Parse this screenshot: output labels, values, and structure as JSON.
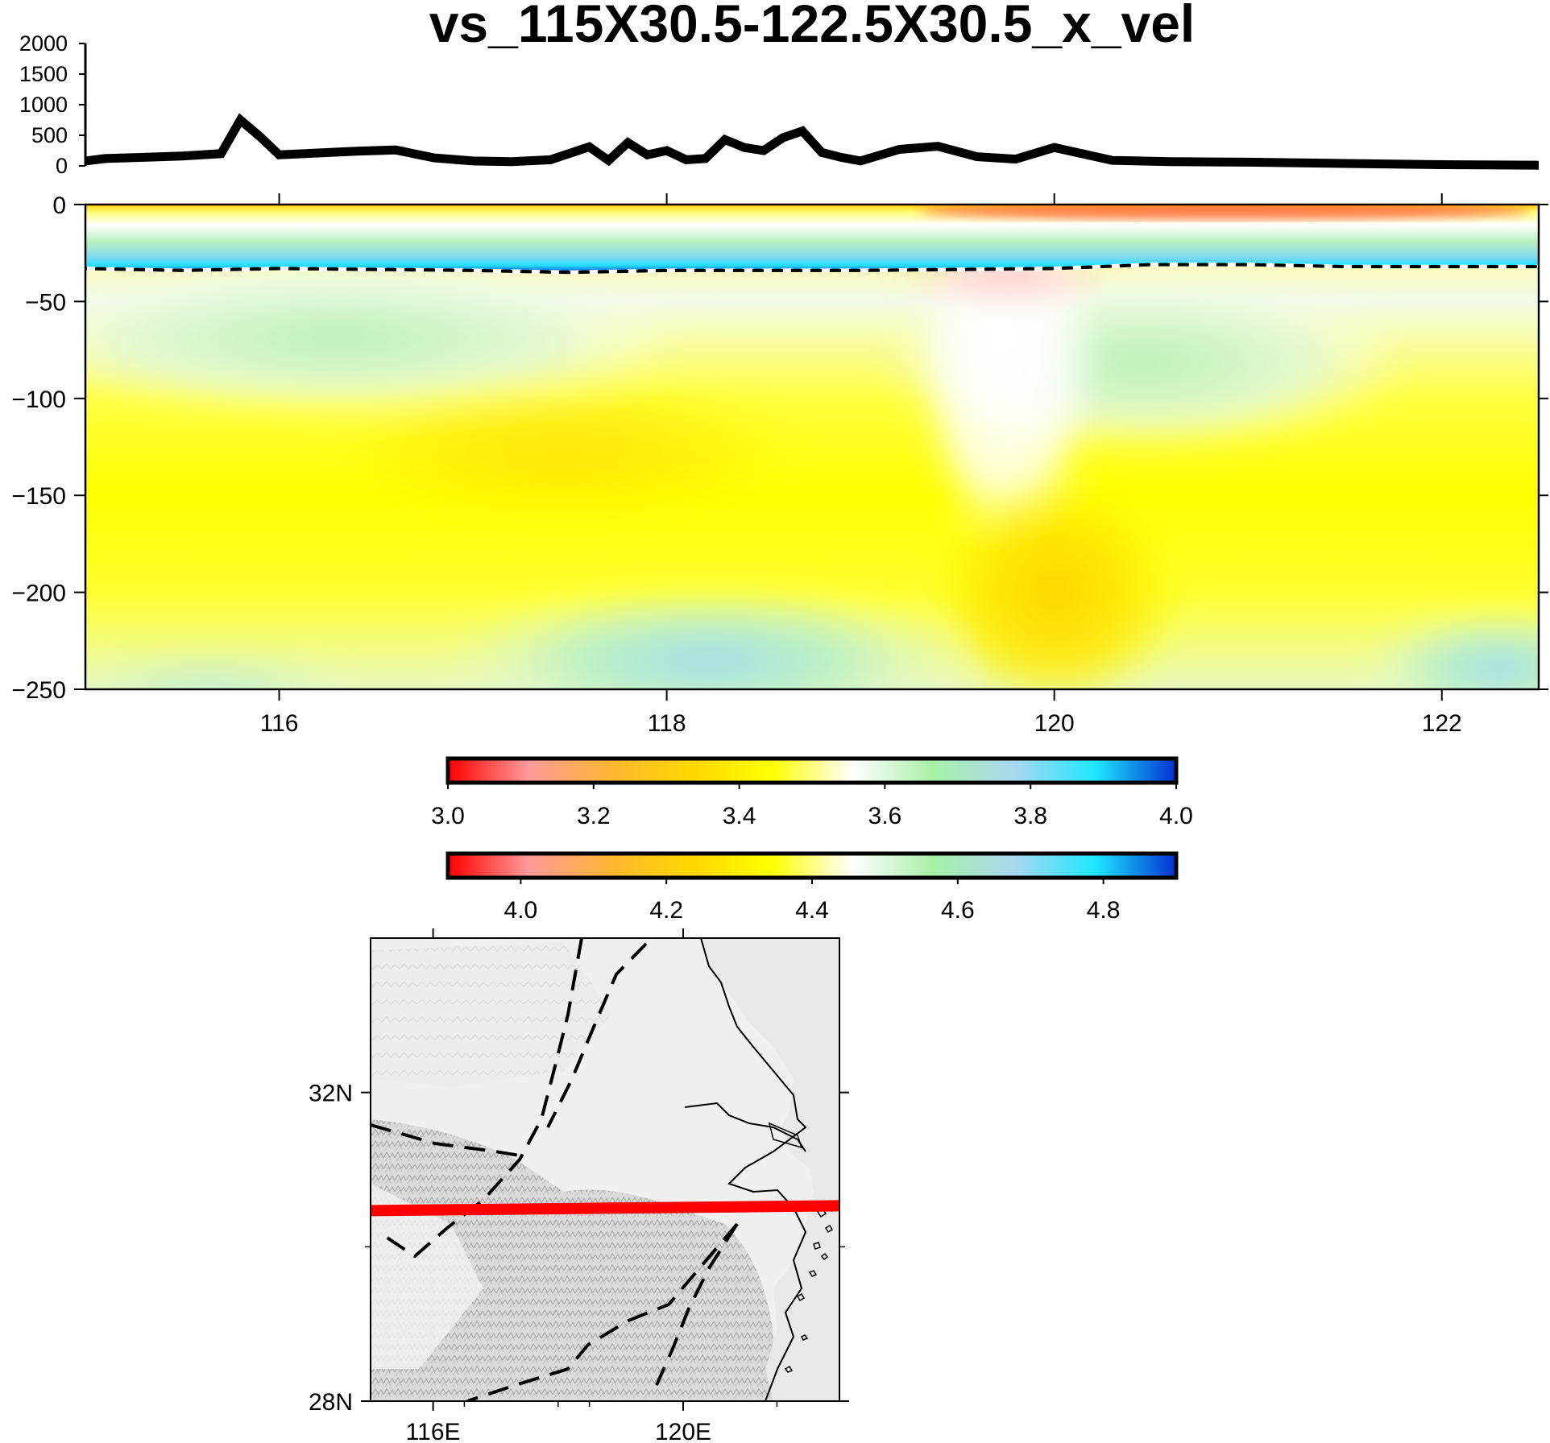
{
  "colors": {
    "profile_line": "#000000",
    "moho_line": "#000000",
    "section_track": "#ff0000"
  },
  "chart_data": [
    {
      "type": "line",
      "title": "vs_115X30.5-122.5X30.5_x_vel",
      "xlim": [
        115,
        122.5
      ],
      "ylim": [
        0,
        2000
      ],
      "y_ticks": [
        "2000",
        "1500",
        "1000",
        "500",
        "0"
      ],
      "x": [
        115.0,
        115.1,
        115.3,
        115.5,
        115.7,
        115.8,
        115.9,
        116.0,
        116.2,
        116.4,
        116.6,
        116.8,
        117.0,
        117.2,
        117.4,
        117.6,
        117.7,
        117.8,
        117.9,
        118.0,
        118.1,
        118.2,
        118.3,
        118.4,
        118.5,
        118.6,
        118.7,
        118.8,
        118.9,
        119.0,
        119.2,
        119.4,
        119.6,
        119.8,
        120.0,
        120.3,
        120.6,
        121.0,
        121.5,
        122.0,
        122.5
      ],
      "values": [
        80,
        120,
        140,
        160,
        200,
        750,
        480,
        180,
        210,
        240,
        260,
        130,
        80,
        70,
        100,
        310,
        90,
        380,
        180,
        250,
        100,
        120,
        430,
        300,
        250,
        460,
        570,
        220,
        140,
        80,
        270,
        320,
        150,
        110,
        300,
        90,
        70,
        60,
        40,
        20,
        10
      ]
    },
    {
      "type": "heatmap",
      "xlim": [
        115,
        122.5
      ],
      "ylim": [
        -250,
        0
      ],
      "x_ticks": [
        "116",
        "118",
        "120",
        "122"
      ],
      "y_ticks": [
        "0",
        "−50",
        "−100",
        "−150",
        "−200",
        "−250"
      ],
      "moho": {
        "x": [
          115.0,
          115.5,
          116.0,
          117.0,
          117.5,
          118.0,
          119.0,
          120.0,
          120.5,
          121.0,
          121.5,
          122.0,
          122.5
        ],
        "depth": [
          -33,
          -34,
          -33,
          -34,
          -35,
          -34,
          -34,
          -33,
          -31,
          -31,
          -32,
          -32,
          -32
        ]
      }
    },
    {
      "type": "colorbar",
      "range": [
        3.0,
        4.0
      ],
      "tick_labels": [
        "3.0",
        "3.2",
        "3.4",
        "3.6",
        "3.8",
        "4.0"
      ],
      "stops": [
        "#ff0000",
        "#ff9a9a",
        "#ffb533",
        "#ffd700",
        "#ffff00",
        "#ffffff",
        "#a8f0a8",
        "#a8d8f0",
        "#20e8ff",
        "#0030d0"
      ]
    },
    {
      "type": "colorbar",
      "range": [
        3.9,
        4.9
      ],
      "tick_labels": [
        "4.0",
        "4.2",
        "4.4",
        "4.6",
        "4.8"
      ],
      "stops": [
        "#ff0000",
        "#ff9a9a",
        "#ffb533",
        "#ffd700",
        "#ffff00",
        "#ffffff",
        "#a8f0a8",
        "#a8d8f0",
        "#20e8ff",
        "#0030d0"
      ]
    },
    {
      "type": "map",
      "xlim": [
        115,
        122.5
      ],
      "ylim": [
        28,
        34
      ],
      "x_ticks": [
        "116E",
        "120E"
      ],
      "y_ticks": [
        "32N",
        "28N"
      ],
      "section": {
        "start": [
          115,
          30.5
        ],
        "end": [
          122.5,
          30.5
        ]
      }
    }
  ]
}
